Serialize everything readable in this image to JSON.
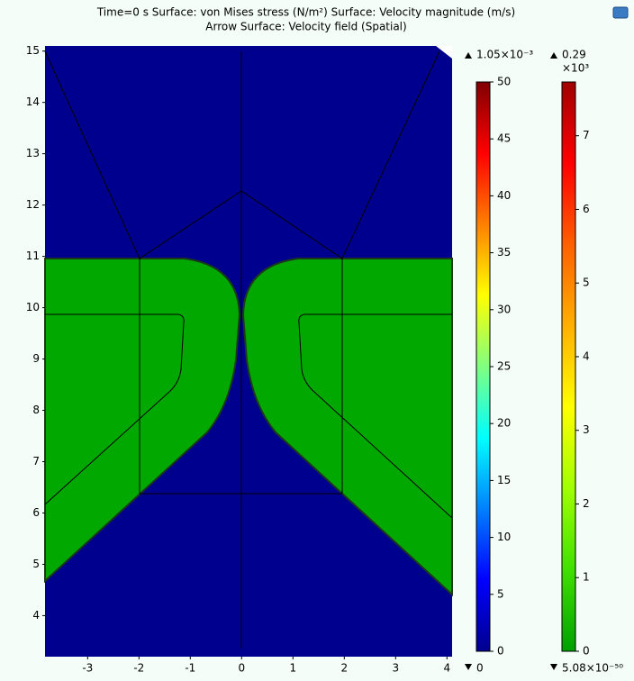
{
  "chart_data": {
    "type": "surface",
    "title": "Time=0 s   Surface: von Mises stress (N/m²)  Surface: Velocity magnitude (m/s)",
    "subtitle": "Arrow Surface: Velocity field (Spatial)",
    "xlim": [
      -3.83,
      4.1
    ],
    "ylim": [
      3.2,
      15.1
    ],
    "xticks": [
      -3,
      -2,
      -1,
      0,
      1,
      2,
      3,
      4
    ],
    "yticks": [
      4,
      5,
      6,
      7,
      8,
      9,
      10,
      11,
      12,
      13,
      14,
      15
    ],
    "colorbars": [
      {
        "ylim": [
          0,
          50
        ],
        "yticks": [
          0,
          5,
          10,
          15,
          20,
          25,
          30,
          35,
          40,
          45,
          50
        ],
        "colors": [
          "#00008f",
          "#0000ff",
          "#0080ff",
          "#00ffff",
          "#80ff80",
          "#ffff00",
          "#ff8000",
          "#ff0000",
          "#800000"
        ],
        "max_label": "1.05×10⁻³",
        "min_label": "0"
      },
      {
        "ylim": [
          0,
          7.73
        ],
        "yticks": [
          0,
          1,
          2,
          3,
          4,
          5,
          6,
          7
        ],
        "colors": [
          "#00a000",
          "#40e000",
          "#a0ff00",
          "#ffff00",
          "#ffb000",
          "#ff6000",
          "#ff0000",
          "#a00000"
        ],
        "max_label": "0.29",
        "multiplier": "×10³",
        "min_label": "5.08×10⁻⁵⁰"
      }
    ]
  }
}
